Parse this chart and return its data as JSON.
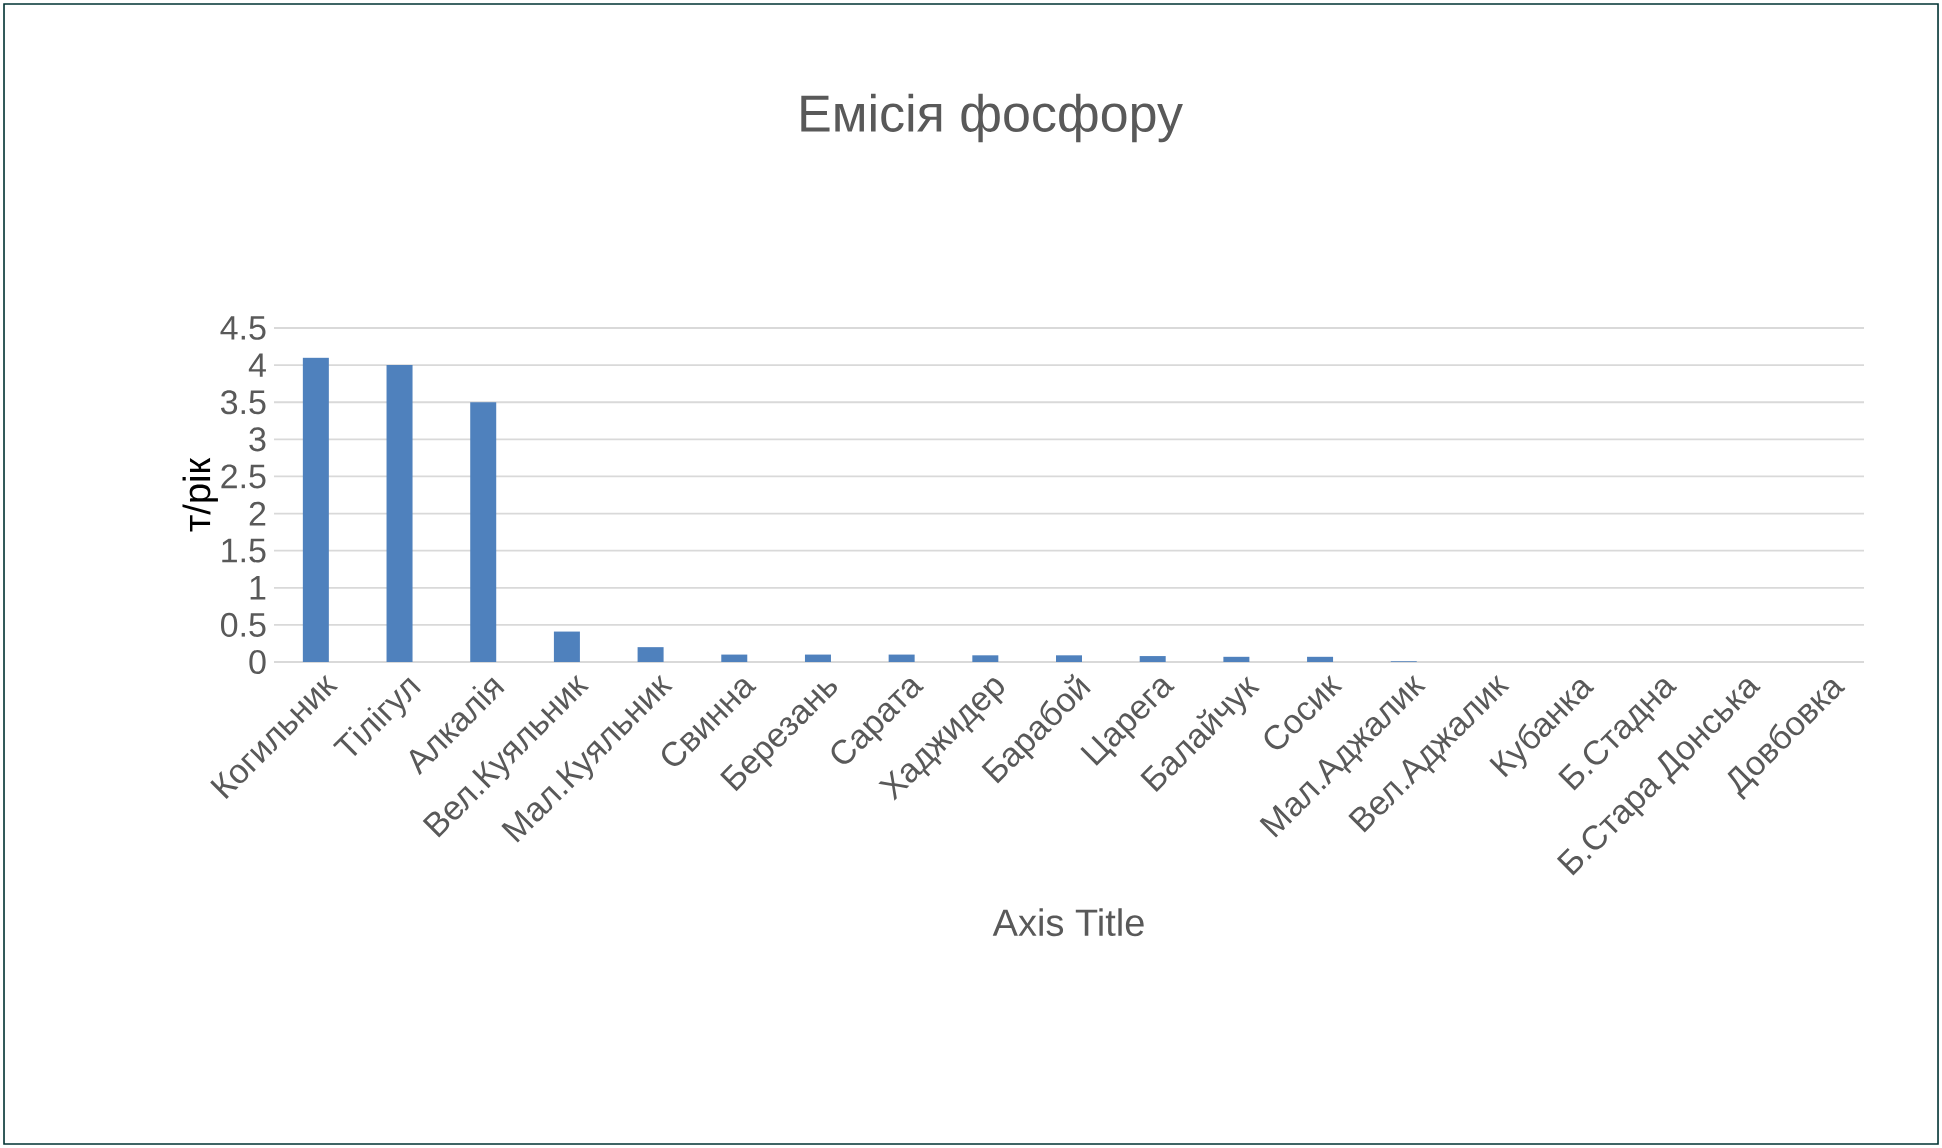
{
  "chart_data": {
    "type": "bar",
    "title": "Емісія фосфору",
    "xlabel": "Axis Title",
    "ylabel": "т/рік",
    "categories": [
      "Когильник",
      "Тілігул",
      "Алкалія",
      "Вел.Куяльник",
      "Мал.Куяльник",
      "Свинна",
      "Березань",
      "Сарата",
      "Хаджидер",
      "Барабой",
      "Царега",
      "Балайчук",
      "Сосик",
      "Мал.Аджалик",
      "Вел.Аджалик",
      "Кубанка",
      "Б.Стадна",
      "Б.Стара Донська",
      "Довбовка"
    ],
    "values": [
      4.1,
      4.0,
      3.5,
      0.41,
      0.2,
      0.1,
      0.1,
      0.1,
      0.09,
      0.09,
      0.08,
      0.07,
      0.07,
      0.01,
      0,
      0,
      0,
      0,
      0
    ],
    "color": "#4f81bd",
    "ylim": [
      0,
      4.5
    ],
    "yticks": [
      0,
      0.5,
      1,
      1.5,
      2,
      2.5,
      3,
      3.5,
      4,
      4.5
    ],
    "grid": "y"
  }
}
